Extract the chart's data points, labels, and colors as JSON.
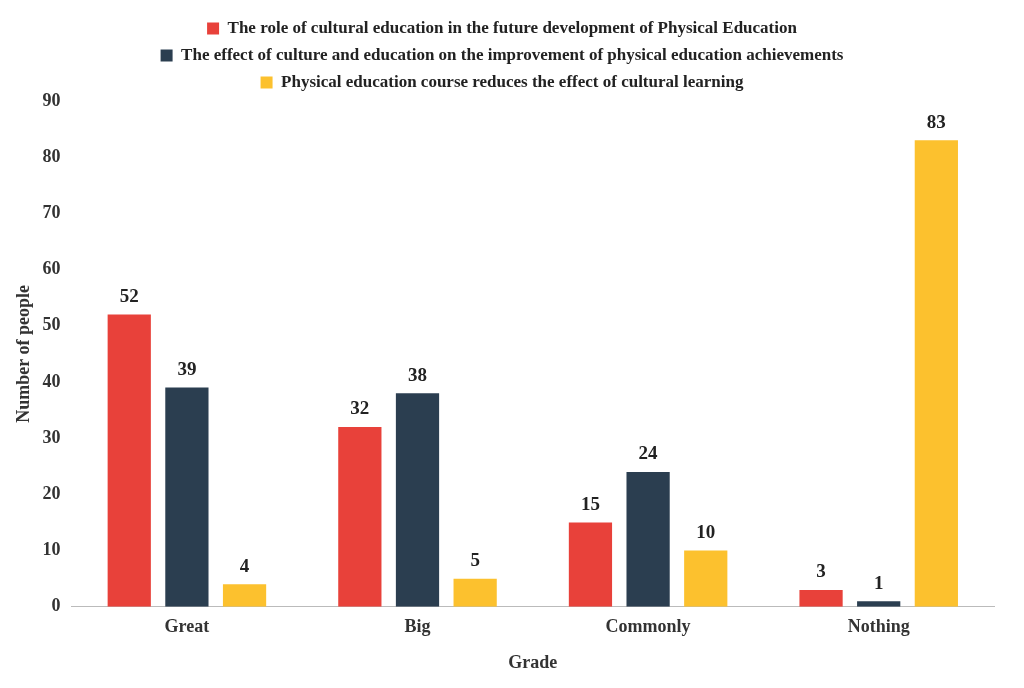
{
  "chart_data": {
    "type": "bar",
    "xlabel": "Grade",
    "ylabel": "Number of people",
    "categories": [
      "Great",
      "Big",
      "Commonly",
      "Nothing"
    ],
    "series": [
      {
        "name": "The role of cultural education in the future development of Physical Education",
        "color": "#e8413a",
        "values": [
          52,
          32,
          15,
          3
        ]
      },
      {
        "name": "The effect of culture and education on the improvement of physical education achievements",
        "color": "#2b3e50",
        "values": [
          39,
          38,
          24,
          1
        ]
      },
      {
        "name": "Physical education course reduces the effect of cultural learning",
        "color": "#fcc12e",
        "values": [
          4,
          5,
          10,
          83
        ]
      }
    ],
    "ylim": [
      0,
      90
    ],
    "yticks": [
      0,
      10,
      20,
      30,
      40,
      50,
      60,
      70,
      80,
      90
    ],
    "grid": false,
    "legend": "top",
    "data_labels": true
  }
}
